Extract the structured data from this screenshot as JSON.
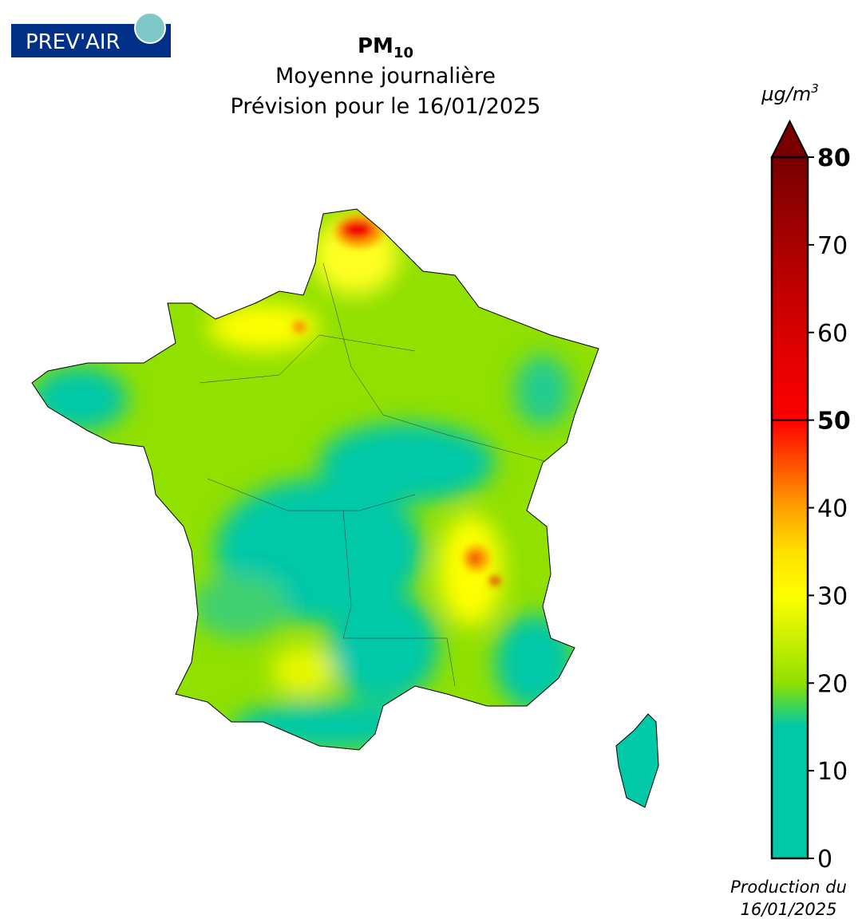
{
  "logo": "PREV'AIR",
  "title": {
    "pollutant": "PM",
    "pollutant_subscript": "10",
    "line2": "Moyenne journalière",
    "line3": "Prévision pour le 16/01/2025"
  },
  "chart_data": {
    "type": "colorbar",
    "unit": "µg/m",
    "unit_superscript": "3",
    "ylim": [
      0,
      80
    ],
    "yticks": [
      0,
      10,
      20,
      30,
      40,
      50,
      60,
      70,
      80
    ],
    "tick_weights": [
      "normal",
      "normal",
      "normal",
      "normal",
      "normal",
      "bold",
      "normal",
      "normal",
      "bold"
    ],
    "threshold_line": 50,
    "extend_color": "#7a0000",
    "stops": [
      {
        "value": 0,
        "color": "#00c8a8"
      },
      {
        "value": 15,
        "color": "#00c8a8"
      },
      {
        "value": 18,
        "color": "#50d840"
      },
      {
        "value": 20,
        "color": "#90e000"
      },
      {
        "value": 25,
        "color": "#c8f000"
      },
      {
        "value": 30,
        "color": "#ffff00"
      },
      {
        "value": 35,
        "color": "#ffe000"
      },
      {
        "value": 40,
        "color": "#ffa000"
      },
      {
        "value": 45,
        "color": "#ff5000"
      },
      {
        "value": 50,
        "color": "#ff0000"
      },
      {
        "value": 60,
        "color": "#d80000"
      },
      {
        "value": 70,
        "color": "#a80000"
      },
      {
        "value": 80,
        "color": "#780000"
      }
    ]
  },
  "footer": {
    "line1": "Production du",
    "line2": "16/01/2025"
  }
}
